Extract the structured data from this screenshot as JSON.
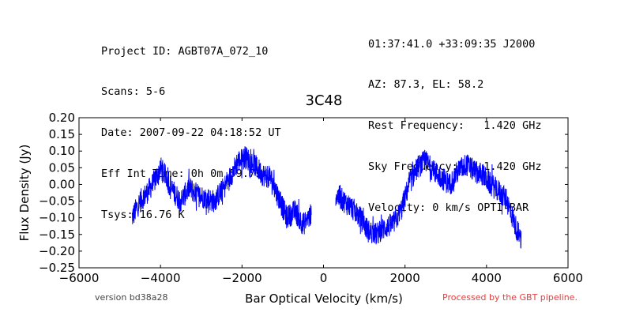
{
  "header": {
    "left": [
      "Project ID: AGBT07A_072_10",
      "Scans: 5-6",
      "Date: 2007-09-22 04:18:52 UT",
      "Eff Int Time: 0h 0m 59.7s",
      "Tsys: 16.76 K"
    ],
    "right": [
      "01:37:41.0 +33:09:35 J2000",
      "AZ: 87.3, EL: 58.2",
      "Rest Frequency:   1.420 GHz",
      "Sky Frequency:    1.420 GHz",
      "Velocity: 0 km/s OPTI-BAR"
    ]
  },
  "footer": {
    "version": "version bd38a28",
    "processed": "Processed by the GBT pipeline."
  },
  "colors": {
    "series": "#0000ff",
    "processed": "#e04040"
  },
  "chart_data": {
    "type": "line",
    "title": "3C48",
    "xlabel": "Bar Optical Velocity (km/s)",
    "ylabel": "Flux Density (Jy)",
    "xlim": [
      -6000,
      6000
    ],
    "ylim": [
      -0.25,
      0.2
    ],
    "xticks": [
      -6000,
      -4000,
      -2000,
      0,
      2000,
      4000,
      6000
    ],
    "xtick_labels": [
      "−6000",
      "−4000",
      "−2000",
      "0",
      "2000",
      "4000",
      "6000"
    ],
    "yticks": [
      0.2,
      0.15,
      0.1,
      0.05,
      0.0,
      -0.05,
      -0.1,
      -0.15,
      -0.2,
      -0.25
    ],
    "ytick_labels": [
      "0.20",
      "0.15",
      "0.10",
      "0.05",
      "0.00",
      "−0.05",
      "−0.10",
      "−0.15",
      "−0.20",
      "−0.25"
    ],
    "grid": false,
    "series": [
      {
        "segments": [
          {
            "x": [
              -4700,
              -4500,
              -4300,
              -4100,
              -4000,
              -3900,
              -3700,
              -3500,
              -3300,
              -3100,
              -2900,
              -2700,
              -2500,
              -2300,
              -2100,
              -1900,
              -1700,
              -1500,
              -1300,
              -1100,
              -900,
              -700,
              -500,
              -300
            ],
            "y": [
              -0.1,
              -0.05,
              -0.02,
              0.02,
              0.05,
              0.03,
              -0.02,
              -0.05,
              -0.01,
              -0.03,
              -0.04,
              -0.05,
              -0.02,
              0.02,
              0.07,
              0.08,
              0.06,
              0.03,
              0.02,
              -0.04,
              -0.1,
              -0.08,
              -0.12,
              -0.09
            ]
          },
          {
            "x": [
              300,
              500,
              700,
              900,
              1100,
              1300,
              1500,
              1700,
              1900,
              2100,
              2300,
              2500,
              2700,
              2900,
              3100,
              3300,
              3500,
              3700,
              3900,
              4100,
              4300,
              4500,
              4700,
              4850
            ],
            "y": [
              -0.03,
              -0.05,
              -0.07,
              -0.1,
              -0.14,
              -0.15,
              -0.13,
              -0.12,
              -0.08,
              0.0,
              0.05,
              0.07,
              0.04,
              0.02,
              0.0,
              0.04,
              0.06,
              0.04,
              0.03,
              0.0,
              -0.02,
              -0.05,
              -0.12,
              -0.17
            ]
          }
        ]
      }
    ]
  }
}
